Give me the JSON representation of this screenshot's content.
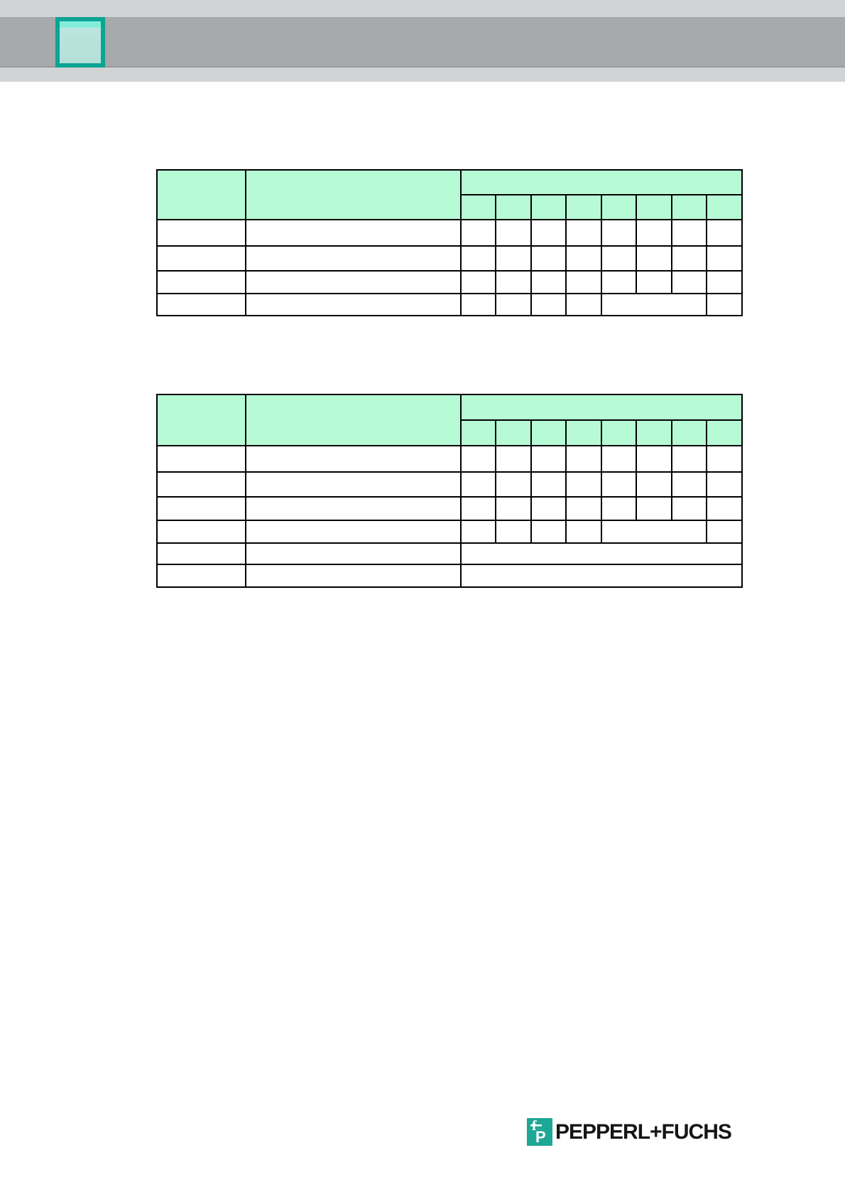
{
  "banner": {
    "strip_color": "#d2d3d5",
    "band_color": "#a7a9ab",
    "accent_box": {
      "border_color": "#0ca493",
      "fill_color": "#b3e0d9",
      "label": ""
    }
  },
  "tables": [
    {
      "name": "table-1",
      "header": {
        "col1": "",
        "col2": "",
        "group": "",
        "sub": [
          "",
          "",
          "",
          "",
          "",
          "",
          "",
          ""
        ]
      },
      "body": [
        {
          "col1": "",
          "col2": "",
          "spans": [
            1,
            1,
            1,
            1,
            1,
            1,
            1,
            1
          ],
          "texts": [
            "",
            "",
            "",
            "",
            "",
            "",
            "",
            ""
          ]
        },
        {
          "col1": "",
          "col2": "",
          "spans": [
            1,
            1,
            1,
            1,
            1,
            1,
            1,
            1
          ],
          "texts": [
            "",
            "",
            "",
            "",
            "",
            "",
            "",
            ""
          ]
        },
        {
          "col1": "",
          "col2": "",
          "spans": [
            1,
            1,
            1,
            1,
            1,
            1,
            1,
            1
          ],
          "texts": [
            "",
            "",
            "",
            "",
            "",
            "",
            "",
            ""
          ]
        },
        {
          "col1": "",
          "col2": "",
          "spans": [
            1,
            1,
            1,
            1,
            3,
            1
          ],
          "texts": [
            "",
            "",
            "",
            "",
            "",
            ""
          ]
        }
      ]
    },
    {
      "name": "table-2",
      "header": {
        "col1": "",
        "col2": "",
        "group": "",
        "sub": [
          "",
          "",
          "",
          "",
          "",
          "",
          "",
          ""
        ]
      },
      "body": [
        {
          "col1": "",
          "col2": "",
          "spans": [
            1,
            1,
            1,
            1,
            1,
            1,
            1,
            1
          ],
          "texts": [
            "",
            "",
            "",
            "",
            "",
            "",
            "",
            ""
          ]
        },
        {
          "col1": "",
          "col2": "",
          "spans": [
            1,
            1,
            1,
            1,
            1,
            1,
            1,
            1
          ],
          "texts": [
            "",
            "",
            "",
            "",
            "",
            "",
            "",
            ""
          ]
        },
        {
          "col1": "",
          "col2": "",
          "spans": [
            1,
            1,
            1,
            1,
            1,
            1,
            1,
            1
          ],
          "texts": [
            "",
            "",
            "",
            "",
            "",
            "",
            "",
            ""
          ]
        },
        {
          "col1": "",
          "col2": "",
          "spans": [
            1,
            1,
            1,
            1,
            3,
            1
          ],
          "texts": [
            "",
            "",
            "",
            "",
            "",
            ""
          ]
        },
        {
          "col1": "",
          "col2": "",
          "spans": [
            8
          ],
          "texts": [
            ""
          ]
        },
        {
          "col1": "",
          "col2": "",
          "spans": [
            8
          ],
          "texts": [
            ""
          ]
        }
      ]
    }
  ],
  "footer": {
    "brand": "PEPPERL+FUCHS",
    "logo_color": "#1ea795"
  }
}
